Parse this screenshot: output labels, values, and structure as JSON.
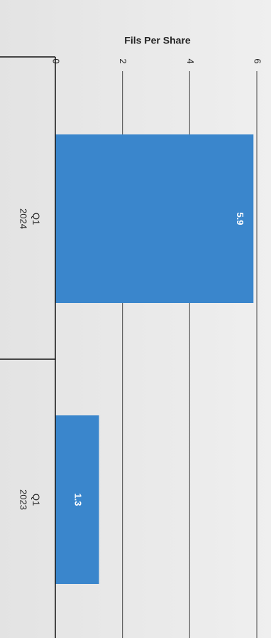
{
  "chart_data": {
    "type": "bar",
    "orientation": "horizontal",
    "title": "Fils Per Share",
    "categories": [
      [
        "Q1",
        "2024"
      ],
      [
        "Q1",
        "2023"
      ]
    ],
    "values": [
      5.9,
      1.3
    ],
    "color": "#3a86cc",
    "ylim": [
      0,
      6
    ],
    "yticks": [
      0,
      2,
      4,
      6
    ],
    "grid": true
  }
}
